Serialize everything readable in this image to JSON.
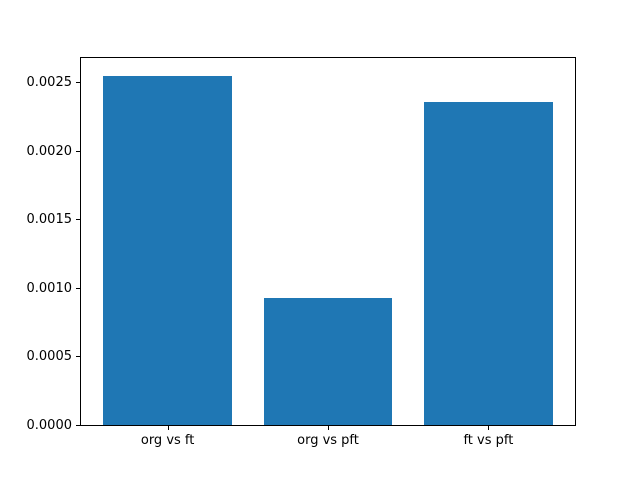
{
  "chart_data": {
    "type": "bar",
    "title": "",
    "xlabel": "",
    "ylabel": "",
    "categories": [
      "org vs ft",
      "org vs pft",
      "ft vs pft"
    ],
    "values": [
      0.00255,
      0.00093,
      0.00236
    ],
    "ylim": [
      0,
      0.002678
    ],
    "ytick_values": [
      0.0,
      0.0005,
      0.001,
      0.0015,
      0.002,
      0.0025
    ],
    "ytick_labels": [
      "0.0000",
      "0.0005",
      "0.0010",
      "0.0015",
      "0.0020",
      "0.0025"
    ],
    "bar_color": "#1f77b4",
    "frame_color": "#000000",
    "background_color": "#ffffff",
    "grid": false,
    "legend": null,
    "bar_width_fraction": 0.8,
    "xlim": [
      -0.54,
      2.54
    ]
  }
}
